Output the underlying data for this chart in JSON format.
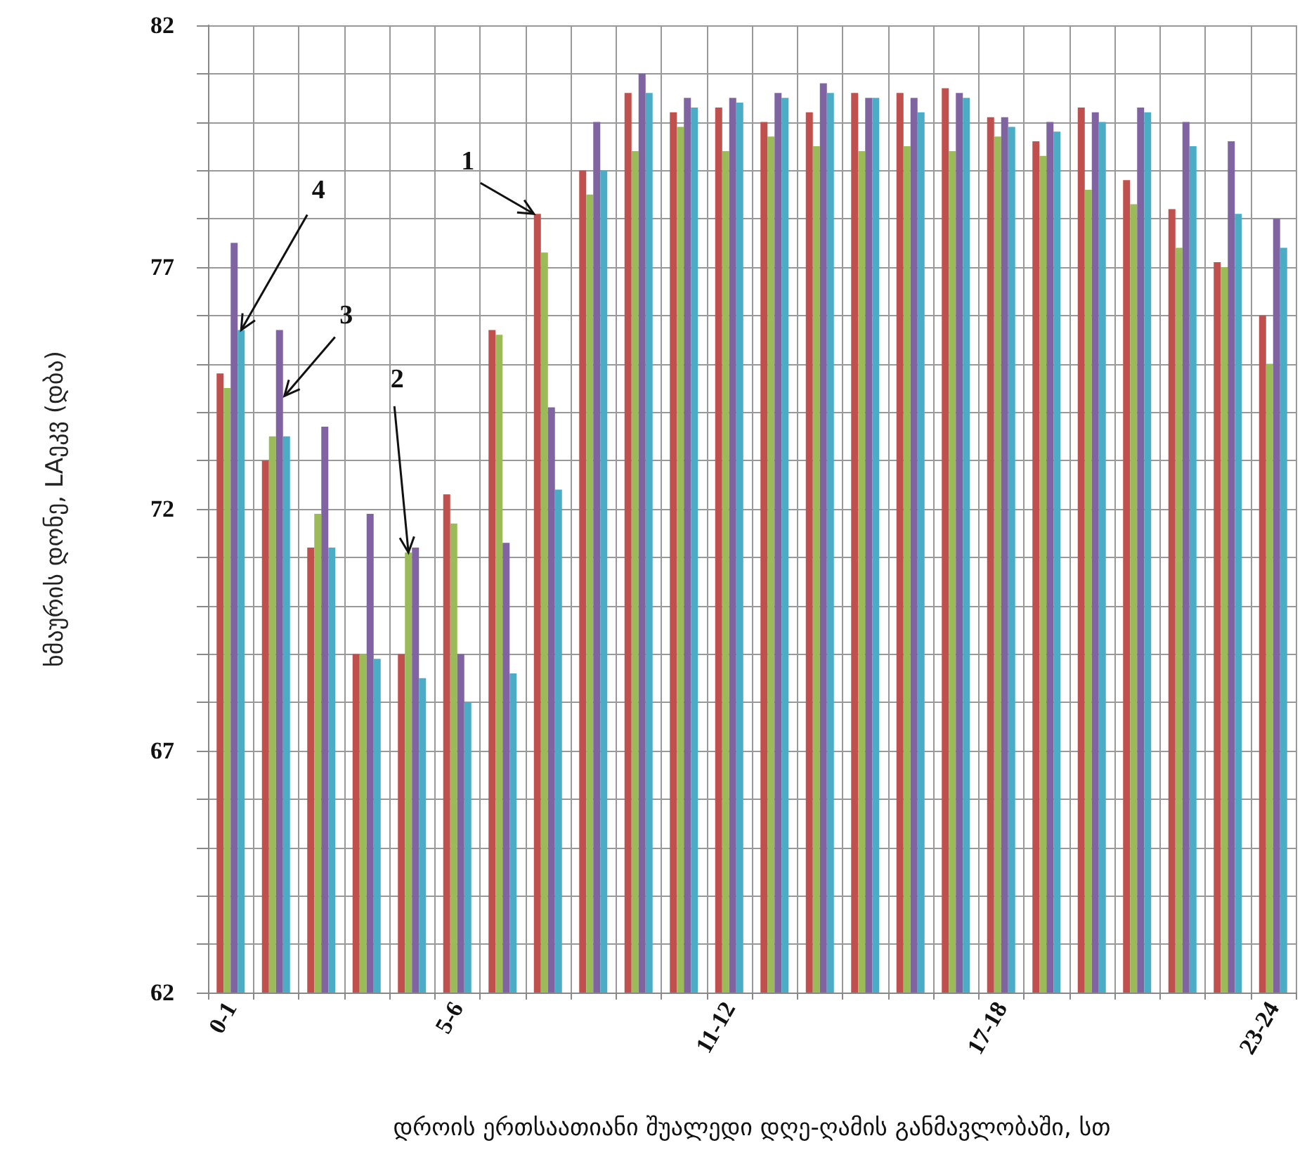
{
  "chart_data": {
    "type": "bar",
    "xlabel": "დროის ერთსაათიანი შუალედი დღე-ღამის განმავლობაში, სთ",
    "ylabel": "ხმაურის დონე, LAეკვ (დბა)",
    "categories": [
      "0-1",
      null,
      null,
      null,
      null,
      "5-6",
      null,
      null,
      null,
      null,
      null,
      "11-12",
      null,
      null,
      null,
      null,
      null,
      "17-18",
      null,
      null,
      null,
      null,
      null,
      "23-24"
    ],
    "series": [
      {
        "name": "1",
        "color": "#c0504d",
        "values": [
          74.8,
          73.0,
          71.2,
          69.0,
          69.0,
          72.3,
          75.7,
          78.1,
          79.0,
          80.6,
          80.2,
          80.3,
          80.0,
          80.2,
          80.6,
          80.6,
          80.7,
          80.1,
          79.6,
          80.3,
          78.8,
          78.2,
          77.1,
          76.0
        ]
      },
      {
        "name": "2",
        "color": "#9bbb59",
        "values": [
          74.5,
          73.5,
          71.9,
          69.0,
          71.1,
          71.7,
          75.6,
          77.3,
          78.5,
          79.4,
          79.9,
          79.4,
          79.7,
          79.5,
          79.4,
          79.5,
          79.4,
          79.7,
          79.3,
          78.6,
          78.3,
          77.4,
          77.0,
          75.0
        ]
      },
      {
        "name": "3",
        "color": "#8064a2",
        "values": [
          77.5,
          75.7,
          73.7,
          71.9,
          71.2,
          69.0,
          71.3,
          74.1,
          80.0,
          81.0,
          80.5,
          80.5,
          80.6,
          80.8,
          80.5,
          80.5,
          80.6,
          80.1,
          80.0,
          80.2,
          80.3,
          80.0,
          79.6,
          78.0
        ]
      },
      {
        "name": "4",
        "color": "#4bacc6",
        "values": [
          75.7,
          73.5,
          71.2,
          68.9,
          68.5,
          68.0,
          68.6,
          72.4,
          79.0,
          80.6,
          80.3,
          80.4,
          80.5,
          80.6,
          80.5,
          80.2,
          80.5,
          79.9,
          79.8,
          80.0,
          80.2,
          79.5,
          78.1,
          77.4
        ]
      }
    ],
    "ylim": [
      62,
      82
    ],
    "yticks": [
      62,
      {
        "value": 63,
        "label": null
      },
      {
        "value": 64,
        "label": null
      },
      {
        "value": 65,
        "label": null
      },
      {
        "value": 66,
        "label": null
      },
      67,
      {
        "value": 68,
        "label": null
      },
      {
        "value": 69,
        "label": null
      },
      {
        "value": 70,
        "label": null
      },
      {
        "value": 71,
        "label": null
      },
      72,
      {
        "value": 73,
        "label": null
      },
      {
        "value": 74,
        "label": null
      },
      {
        "value": 75,
        "label": null
      },
      {
        "value": 76,
        "label": null
      },
      77,
      {
        "value": 78,
        "label": null
      },
      {
        "value": 79,
        "label": null
      },
      {
        "value": 80,
        "label": null
      },
      {
        "value": 81,
        "label": null
      },
      82
    ],
    "grid": true
  }
}
